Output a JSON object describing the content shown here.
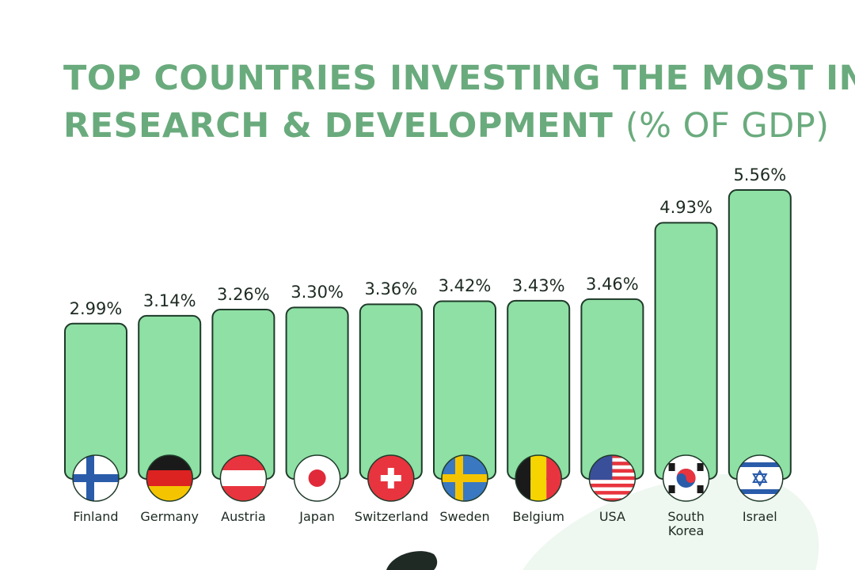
{
  "chart_data": {
    "type": "bar",
    "title_lines": [
      "TOP COUNTRIES INVESTING THE MOST IN",
      "RESEARCH & DEVELOPMENT"
    ],
    "title_unit": "(% OF GDP)",
    "categories": [
      "Finland",
      "Germany",
      "Austria",
      "Japan",
      "Switzerland",
      "Sweden",
      "Belgium",
      "USA",
      "South Korea",
      "Israel"
    ],
    "values": [
      2.99,
      3.14,
      3.26,
      3.3,
      3.36,
      3.42,
      3.43,
      3.46,
      4.93,
      5.56
    ],
    "value_labels": [
      "2.99%",
      "3.14%",
      "3.26%",
      "3.30%",
      "3.36%",
      "3.42%",
      "3.43%",
      "3.46%",
      "4.93%",
      "5.56%"
    ],
    "color": "#8ee0a4"
  }
}
